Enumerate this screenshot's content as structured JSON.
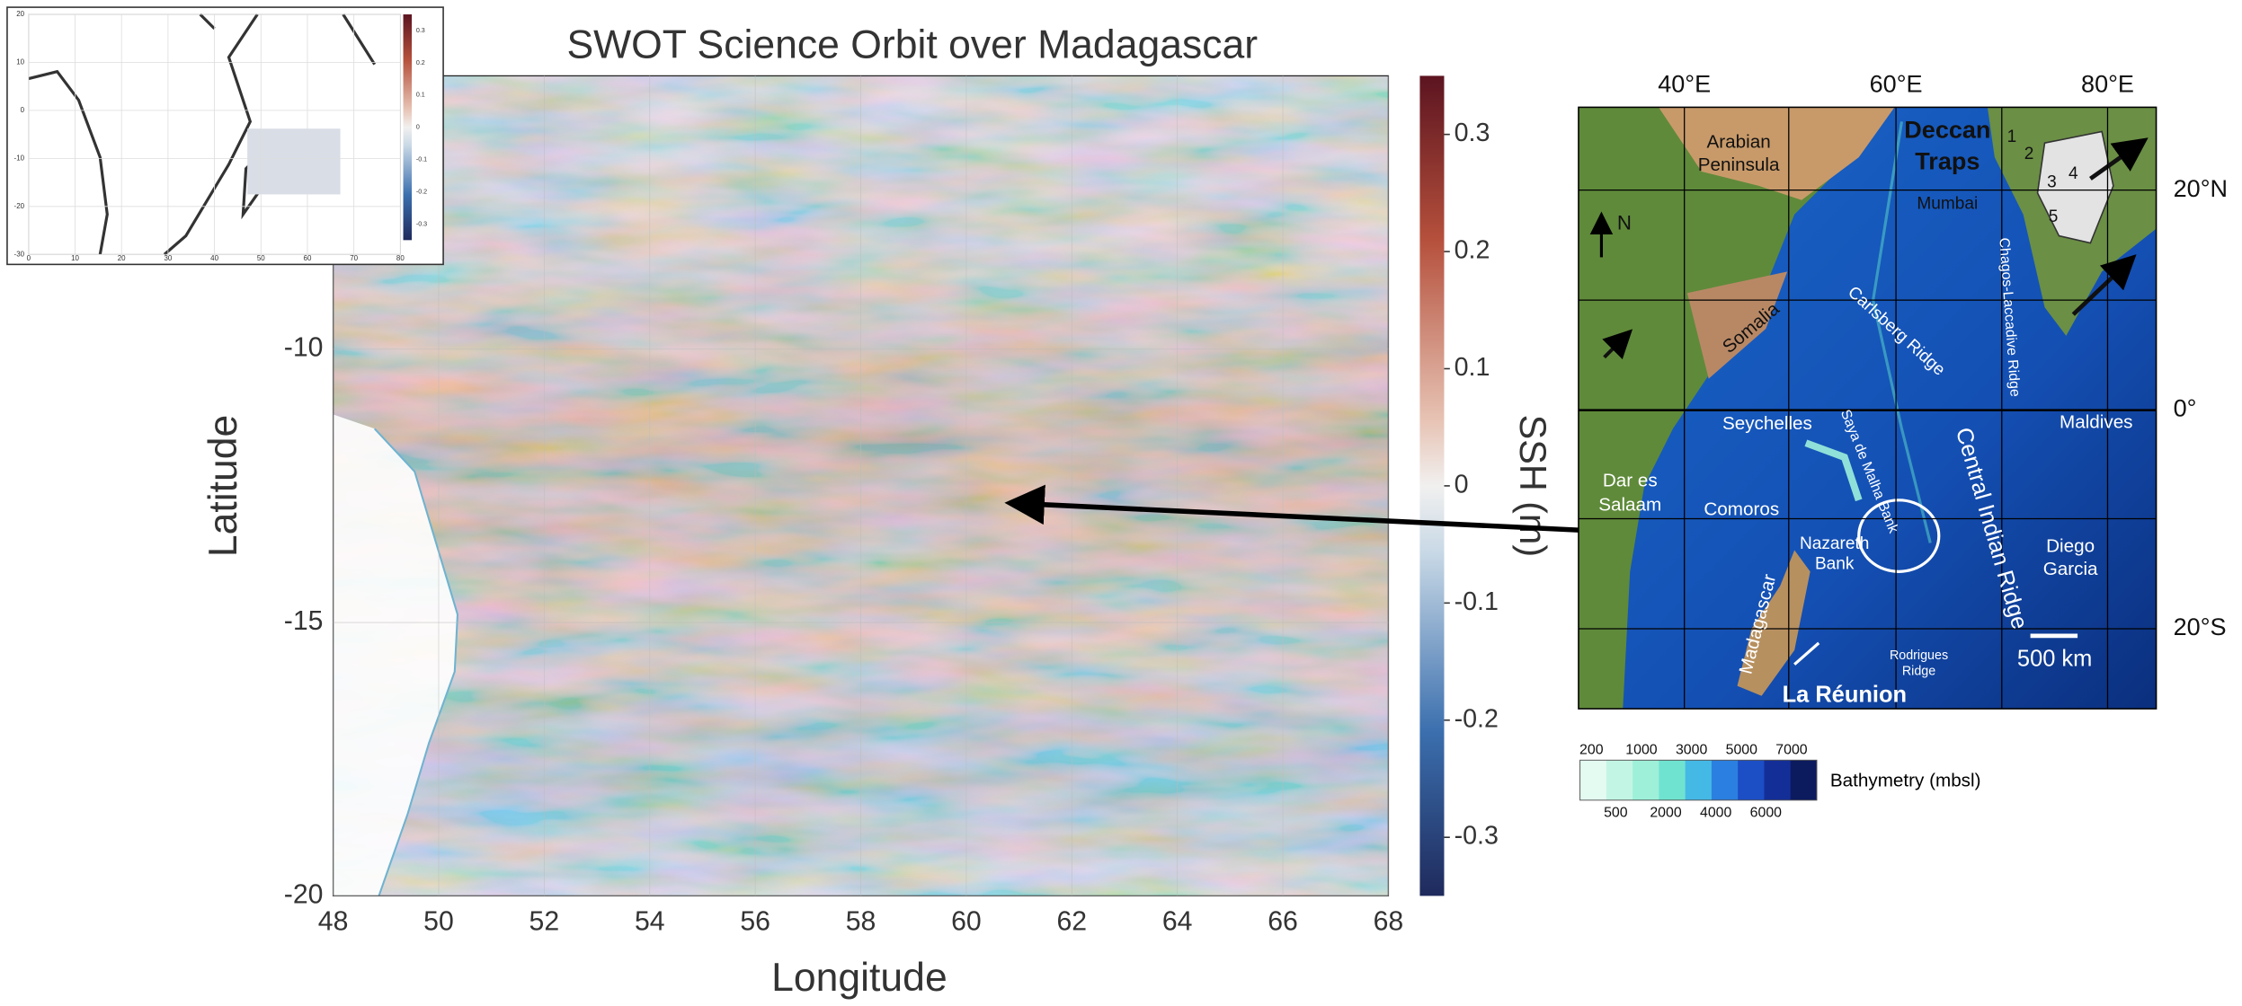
{
  "main_map": {
    "title": "SWOT Science Orbit over Madagascar",
    "x_label": "Longitude",
    "y_label": "Latitude",
    "xlim": [
      48,
      68
    ],
    "ylim": [
      -20,
      -5
    ],
    "xticks": [
      48,
      50,
      52,
      54,
      56,
      58,
      60,
      62,
      64,
      66,
      68
    ],
    "yticks": [
      -20,
      -15,
      -10
    ]
  },
  "colorbar": {
    "label": "SSH (m)",
    "lim": [
      -0.35,
      0.35
    ],
    "ticks": [
      -0.3,
      -0.2,
      -0.1,
      0,
      0.1,
      0.2,
      0.3
    ]
  },
  "inset": {
    "xlim": [
      0,
      80
    ],
    "ylim": [
      -30,
      20
    ],
    "xticks": [
      0,
      10,
      20,
      30,
      40,
      50,
      60,
      70,
      80
    ],
    "yticks": [
      -30,
      -20,
      -10,
      0,
      10,
      20
    ],
    "colorbar_lim": [
      -0.35,
      0.35
    ],
    "colorbar_ticks": [
      -0.3,
      -0.2,
      -0.1,
      0,
      0.1,
      0.2,
      0.3
    ]
  },
  "bathymetry_map": {
    "top_labels": [
      "40°E",
      "60°E",
      "80°E"
    ],
    "right_labels": [
      "20°N",
      "0°",
      "20°S"
    ],
    "labels": [
      [
        "Arabian",
        "Peninsula"
      ],
      [
        "Deccan",
        "Traps"
      ],
      [
        "1"
      ],
      [
        "2"
      ],
      [
        "3"
      ],
      [
        "4"
      ],
      [
        "5"
      ],
      [
        "Mumbai"
      ],
      [
        "N"
      ],
      [
        "Somalia"
      ],
      [
        "Carlsberg Ridge"
      ],
      [
        "Chagos-Laccadive Ridge"
      ],
      [
        "Seychelles"
      ],
      [
        "Saya de Malha Bank"
      ],
      [
        "Central Indian Ridge"
      ],
      [
        "Maldives"
      ],
      [
        "Dar es",
        "Salaam"
      ],
      [
        "Comoros"
      ],
      [
        "Nazareth",
        "Bank"
      ],
      [
        "Madagascar"
      ],
      [
        "Diego",
        "Garcia"
      ],
      [
        "Rodrigues",
        "Ridge"
      ],
      [
        "500 km"
      ],
      [
        "La Réunion"
      ]
    ],
    "legend": {
      "label": "Bathymetry (mbsl)",
      "upper_ticks": [
        200,
        1000,
        3000,
        5000,
        7000
      ],
      "lower_ticks": [
        500,
        2000,
        4000,
        6000
      ]
    }
  }
}
